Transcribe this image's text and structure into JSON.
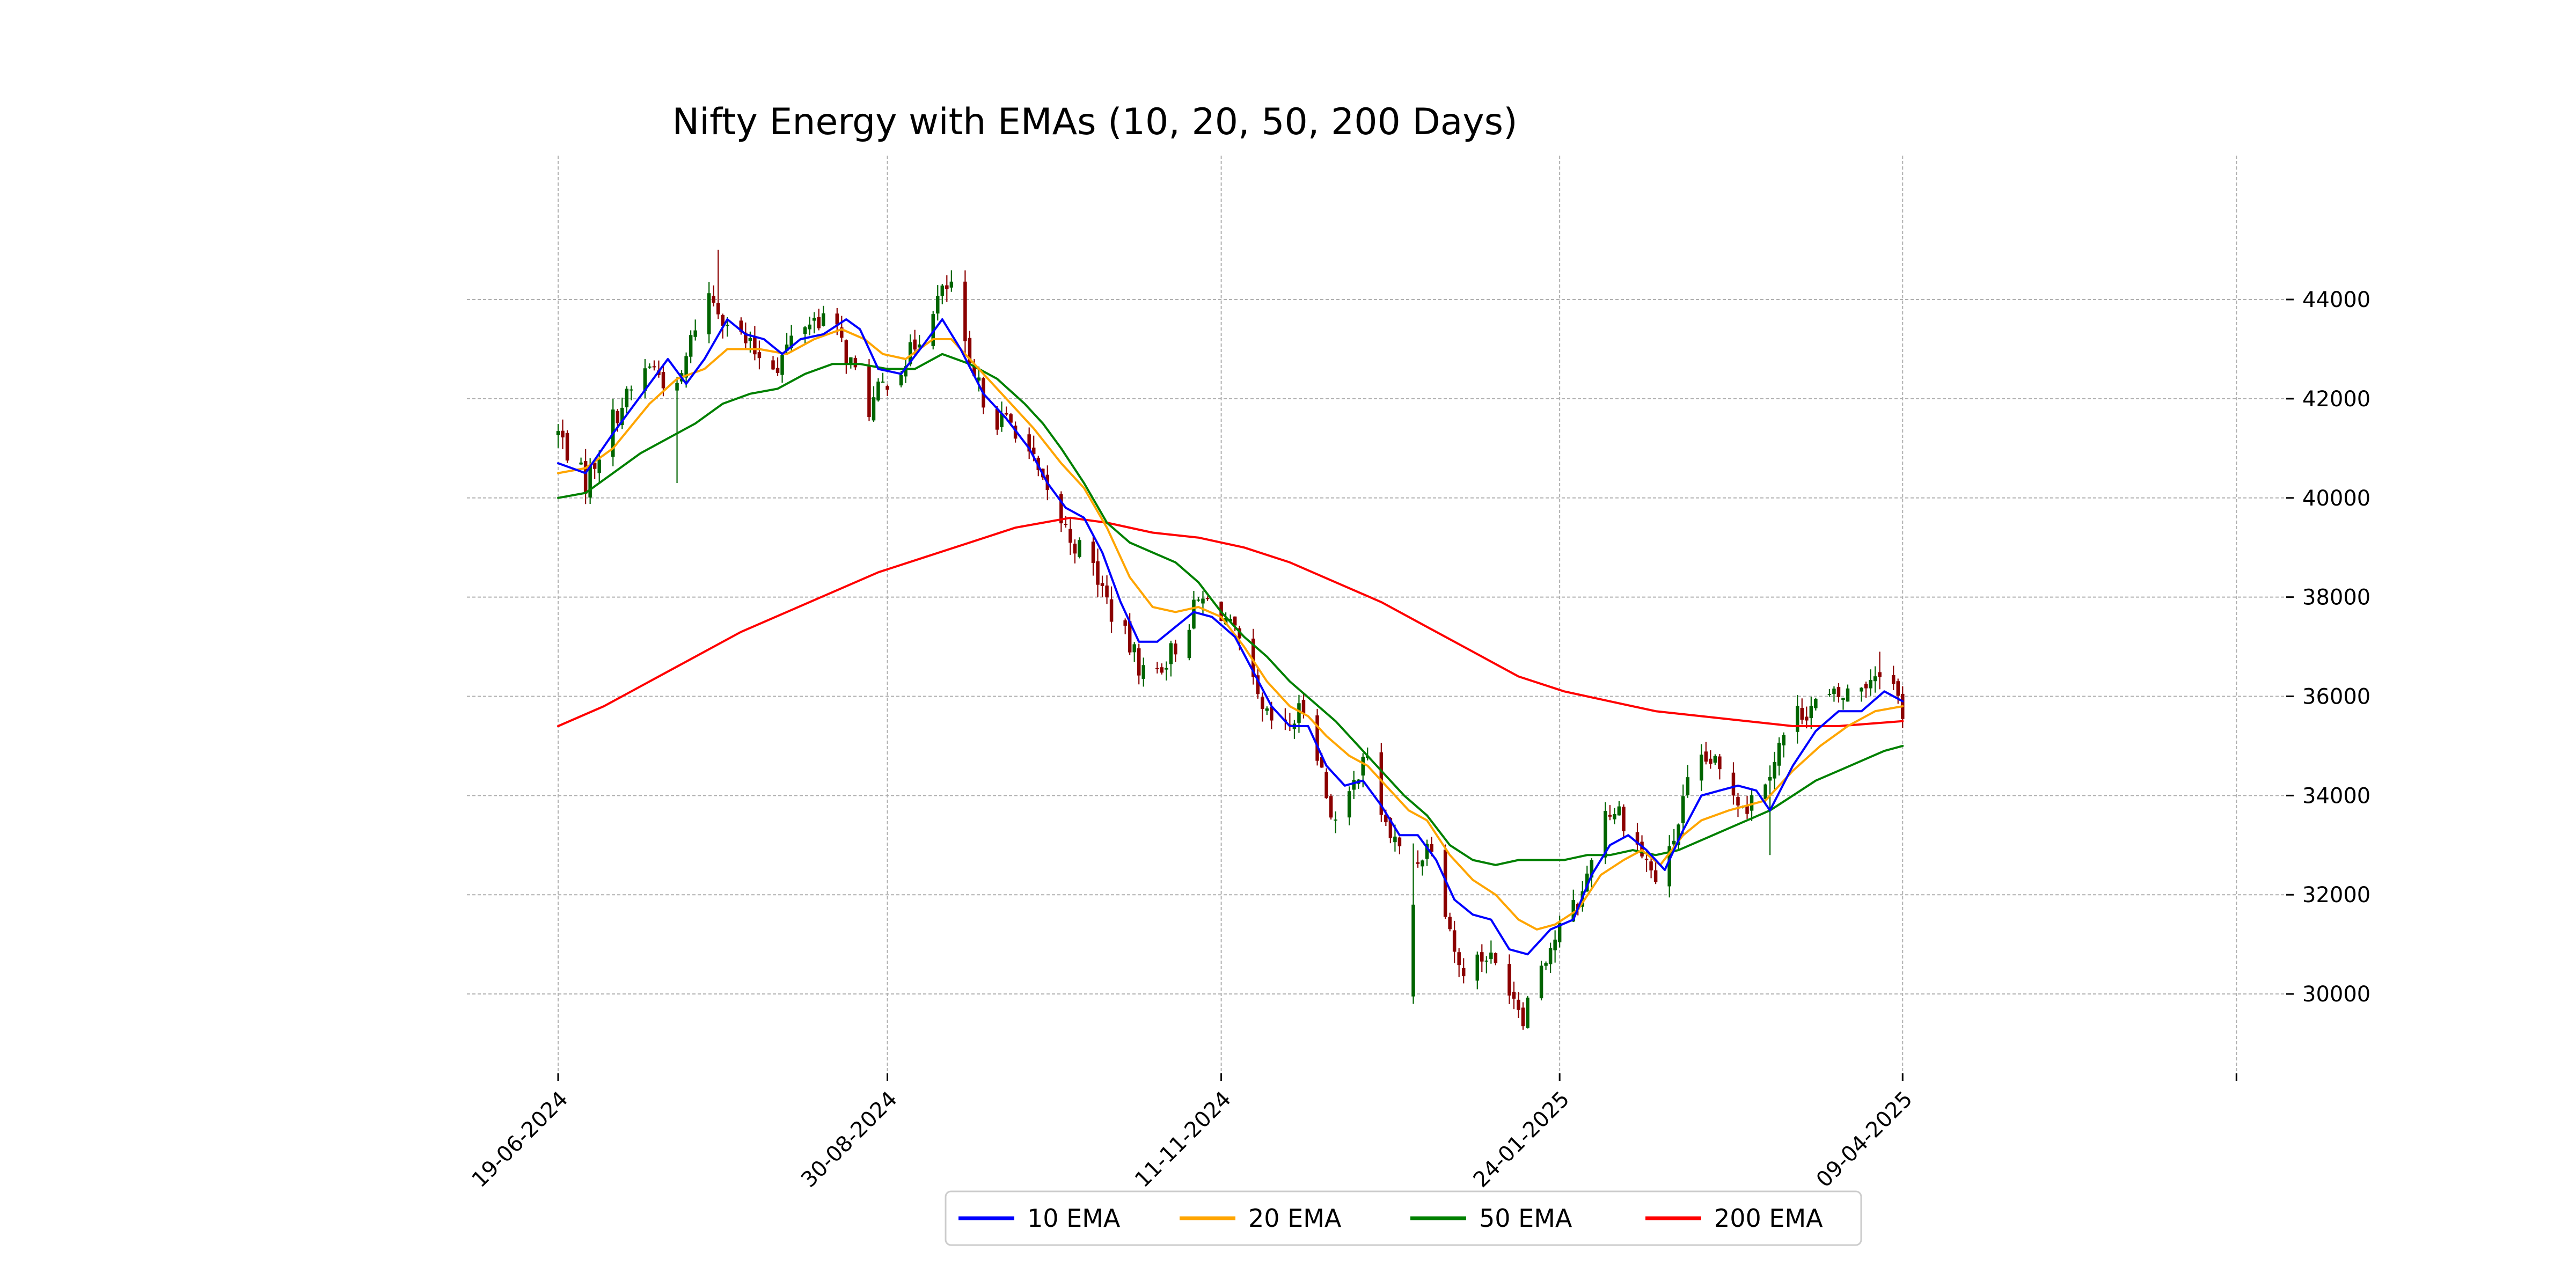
{
  "chart_data": {
    "type": "candlestick",
    "title": "Nifty Energy with EMAs (10, 20, 50, 200 Days)",
    "xlabel": "",
    "ylabel": "",
    "ylim": [
      28400,
      46900
    ],
    "x_range": [
      "2024-06-19",
      "2025-06-30"
    ],
    "x_ticks": [
      {
        "date": "2024-06-19",
        "label": "19-06-2024"
      },
      {
        "date": "2024-08-30",
        "label": "30-08-2024"
      },
      {
        "date": "2024-11-11",
        "label": "11-11-2024"
      },
      {
        "date": "2025-01-24",
        "label": "24-01-2025"
      },
      {
        "date": "2025-04-09",
        "label": "09-04-2025"
      },
      {
        "date": "2025-06-21",
        "label": ""
      }
    ],
    "y_ticks": [
      30000,
      32000,
      34000,
      36000,
      38000,
      40000,
      42000,
      44000
    ],
    "grid": true,
    "legend_position": "bottom-center",
    "colors": {
      "up": "#006400",
      "down": "#8b0000"
    },
    "candles": {
      "start_date": "2024-06-19",
      "anchors": [
        [
          0,
          41300
        ],
        [
          6,
          40300
        ],
        [
          12,
          41600
        ],
        [
          20,
          42700
        ],
        [
          26,
          42100
        ],
        [
          32,
          44200
        ],
        [
          37,
          43600
        ],
        [
          42,
          43000
        ],
        [
          48,
          42700
        ],
        [
          53,
          43500
        ],
        [
          59,
          43700
        ],
        [
          64,
          42700
        ],
        [
          68,
          41800
        ],
        [
          72,
          42400
        ],
        [
          77,
          42900
        ],
        [
          82,
          43900
        ],
        [
          86,
          44300
        ],
        [
          90,
          42500
        ],
        [
          96,
          41600
        ],
        [
          101,
          41400
        ],
        [
          106,
          40200
        ],
        [
          112,
          39200
        ],
        [
          117,
          38600
        ],
        [
          121,
          37700
        ],
        [
          125,
          37000
        ],
        [
          129,
          36300
        ],
        [
          135,
          37000
        ],
        [
          140,
          37900
        ],
        [
          144,
          37900
        ],
        [
          149,
          37000
        ],
        [
          154,
          35600
        ],
        [
          159,
          35300
        ],
        [
          164,
          35900
        ],
        [
          168,
          34000
        ],
        [
          171,
          33200
        ],
        [
          176,
          34900
        ],
        [
          181,
          33400
        ],
        [
          186,
          32500
        ],
        [
          191,
          33100
        ],
        [
          197,
          30500
        ],
        [
          203,
          30800
        ],
        [
          208,
          30200
        ],
        [
          211,
          29600
        ],
        [
          214,
          30500
        ],
        [
          219,
          31300
        ],
        [
          224,
          32000
        ],
        [
          228,
          33700
        ],
        [
          232,
          33700
        ],
        [
          236,
          33000
        ],
        [
          240,
          32300
        ],
        [
          243,
          32800
        ],
        [
          248,
          34500
        ],
        [
          252,
          34700
        ],
        [
          256,
          34200
        ],
        [
          260,
          33800
        ],
        [
          264,
          34400
        ],
        [
          270,
          35600
        ],
        [
          276,
          35900
        ],
        [
          281,
          36000
        ],
        [
          286,
          36300
        ],
        [
          290,
          36700
        ],
        [
          294,
          35700
        ]
      ],
      "spikes": [
        {
          "day": 187,
          "low": 29800,
          "close": 31800
        },
        {
          "day": 35,
          "high": 45000
        },
        {
          "day": 26,
          "low": 40300
        },
        {
          "day": 265,
          "low": 32800
        },
        {
          "day": 289,
          "high": 36900
        }
      ]
    },
    "series": [
      {
        "name": "10 EMA",
        "color": "#0000ff",
        "width": 4,
        "values": [
          [
            0,
            40700
          ],
          [
            6,
            40500
          ],
          [
            12,
            41300
          ],
          [
            20,
            42300
          ],
          [
            24,
            42800
          ],
          [
            28,
            42300
          ],
          [
            32,
            42800
          ],
          [
            37,
            43600
          ],
          [
            41,
            43300
          ],
          [
            45,
            43200
          ],
          [
            49,
            42900
          ],
          [
            53,
            43200
          ],
          [
            58,
            43300
          ],
          [
            63,
            43600
          ],
          [
            66,
            43400
          ],
          [
            70,
            42600
          ],
          [
            75,
            42500
          ],
          [
            80,
            43100
          ],
          [
            84,
            43600
          ],
          [
            88,
            43000
          ],
          [
            93,
            42100
          ],
          [
            98,
            41600
          ],
          [
            103,
            41000
          ],
          [
            107,
            40300
          ],
          [
            111,
            39800
          ],
          [
            115,
            39600
          ],
          [
            119,
            38900
          ],
          [
            123,
            37900
          ],
          [
            127,
            37100
          ],
          [
            131,
            37100
          ],
          [
            135,
            37400
          ],
          [
            139,
            37700
          ],
          [
            143,
            37600
          ],
          [
            148,
            37200
          ],
          [
            152,
            36500
          ],
          [
            156,
            35800
          ],
          [
            160,
            35400
          ],
          [
            164,
            35400
          ],
          [
            168,
            34600
          ],
          [
            172,
            34200
          ],
          [
            176,
            34300
          ],
          [
            180,
            33800
          ],
          [
            184,
            33200
          ],
          [
            188,
            33200
          ],
          [
            192,
            32700
          ],
          [
            196,
            31900
          ],
          [
            200,
            31600
          ],
          [
            204,
            31500
          ],
          [
            208,
            30900
          ],
          [
            212,
            30800
          ],
          [
            217,
            31300
          ],
          [
            222,
            31500
          ],
          [
            226,
            32400
          ],
          [
            230,
            33000
          ],
          [
            234,
            33200
          ],
          [
            238,
            32900
          ],
          [
            242,
            32500
          ],
          [
            246,
            33300
          ],
          [
            250,
            34000
          ],
          [
            254,
            34100
          ],
          [
            258,
            34200
          ],
          [
            262,
            34100
          ],
          [
            265,
            33700
          ],
          [
            270,
            34600
          ],
          [
            275,
            35300
          ],
          [
            280,
            35700
          ],
          [
            285,
            35700
          ],
          [
            290,
            36100
          ],
          [
            294,
            35900
          ]
        ]
      },
      {
        "name": "20 EMA",
        "color": "#ffa500",
        "width": 4,
        "values": [
          [
            0,
            40500
          ],
          [
            6,
            40600
          ],
          [
            12,
            41000
          ],
          [
            20,
            41900
          ],
          [
            26,
            42400
          ],
          [
            32,
            42600
          ],
          [
            37,
            43000
          ],
          [
            44,
            43000
          ],
          [
            50,
            42900
          ],
          [
            56,
            43200
          ],
          [
            62,
            43400
          ],
          [
            67,
            43200
          ],
          [
            71,
            42900
          ],
          [
            76,
            42800
          ],
          [
            82,
            43200
          ],
          [
            86,
            43200
          ],
          [
            92,
            42600
          ],
          [
            98,
            42000
          ],
          [
            104,
            41400
          ],
          [
            110,
            40700
          ],
          [
            115,
            40200
          ],
          [
            120,
            39400
          ],
          [
            125,
            38400
          ],
          [
            130,
            37800
          ],
          [
            135,
            37700
          ],
          [
            140,
            37800
          ],
          [
            145,
            37600
          ],
          [
            150,
            37000
          ],
          [
            155,
            36300
          ],
          [
            160,
            35800
          ],
          [
            164,
            35600
          ],
          [
            168,
            35200
          ],
          [
            173,
            34800
          ],
          [
            177,
            34600
          ],
          [
            182,
            34100
          ],
          [
            186,
            33700
          ],
          [
            190,
            33500
          ],
          [
            195,
            32800
          ],
          [
            200,
            32300
          ],
          [
            205,
            32000
          ],
          [
            210,
            31500
          ],
          [
            214,
            31300
          ],
          [
            218,
            31400
          ],
          [
            223,
            31700
          ],
          [
            228,
            32400
          ],
          [
            233,
            32700
          ],
          [
            237,
            32900
          ],
          [
            241,
            32600
          ],
          [
            246,
            33200
          ],
          [
            250,
            33500
          ],
          [
            256,
            33700
          ],
          [
            260,
            33800
          ],
          [
            264,
            33900
          ],
          [
            270,
            34500
          ],
          [
            276,
            35000
          ],
          [
            282,
            35400
          ],
          [
            288,
            35700
          ],
          [
            294,
            35800
          ]
        ]
      },
      {
        "name": "50 EMA",
        "color": "#008000",
        "width": 4,
        "values": [
          [
            0,
            40000
          ],
          [
            6,
            40100
          ],
          [
            12,
            40500
          ],
          [
            18,
            40900
          ],
          [
            24,
            41200
          ],
          [
            30,
            41500
          ],
          [
            36,
            41900
          ],
          [
            42,
            42100
          ],
          [
            48,
            42200
          ],
          [
            54,
            42500
          ],
          [
            60,
            42700
          ],
          [
            66,
            42700
          ],
          [
            72,
            42600
          ],
          [
            78,
            42600
          ],
          [
            84,
            42900
          ],
          [
            90,
            42700
          ],
          [
            96,
            42400
          ],
          [
            102,
            41900
          ],
          [
            106,
            41500
          ],
          [
            110,
            41000
          ],
          [
            115,
            40300
          ],
          [
            120,
            39500
          ],
          [
            125,
            39100
          ],
          [
            130,
            38900
          ],
          [
            135,
            38700
          ],
          [
            140,
            38300
          ],
          [
            145,
            37700
          ],
          [
            150,
            37200
          ],
          [
            155,
            36800
          ],
          [
            160,
            36300
          ],
          [
            165,
            35900
          ],
          [
            170,
            35500
          ],
          [
            175,
            35000
          ],
          [
            180,
            34500
          ],
          [
            185,
            34000
          ],
          [
            190,
            33600
          ],
          [
            195,
            33000
          ],
          [
            200,
            32700
          ],
          [
            205,
            32600
          ],
          [
            210,
            32700
          ],
          [
            215,
            32700
          ],
          [
            220,
            32700
          ],
          [
            225,
            32800
          ],
          [
            230,
            32800
          ],
          [
            235,
            32900
          ],
          [
            240,
            32800
          ],
          [
            245,
            32900
          ],
          [
            250,
            33100
          ],
          [
            255,
            33300
          ],
          [
            260,
            33500
          ],
          [
            265,
            33700
          ],
          [
            270,
            34000
          ],
          [
            275,
            34300
          ],
          [
            280,
            34500
          ],
          [
            285,
            34700
          ],
          [
            290,
            34900
          ],
          [
            294,
            35000
          ]
        ]
      },
      {
        "name": "200 EMA",
        "color": "#ff0000",
        "width": 4,
        "values": [
          [
            0,
            35400
          ],
          [
            10,
            35800
          ],
          [
            20,
            36300
          ],
          [
            30,
            36800
          ],
          [
            40,
            37300
          ],
          [
            50,
            37700
          ],
          [
            60,
            38100
          ],
          [
            70,
            38500
          ],
          [
            80,
            38800
          ],
          [
            90,
            39100
          ],
          [
            100,
            39400
          ],
          [
            106,
            39500
          ],
          [
            112,
            39600
          ],
          [
            120,
            39500
          ],
          [
            130,
            39300
          ],
          [
            140,
            39200
          ],
          [
            150,
            39000
          ],
          [
            160,
            38700
          ],
          [
            170,
            38300
          ],
          [
            180,
            37900
          ],
          [
            190,
            37400
          ],
          [
            200,
            36900
          ],
          [
            210,
            36400
          ],
          [
            220,
            36100
          ],
          [
            230,
            35900
          ],
          [
            240,
            35700
          ],
          [
            250,
            35600
          ],
          [
            260,
            35500
          ],
          [
            270,
            35400
          ],
          [
            280,
            35400
          ],
          [
            294,
            35500
          ]
        ]
      }
    ]
  }
}
